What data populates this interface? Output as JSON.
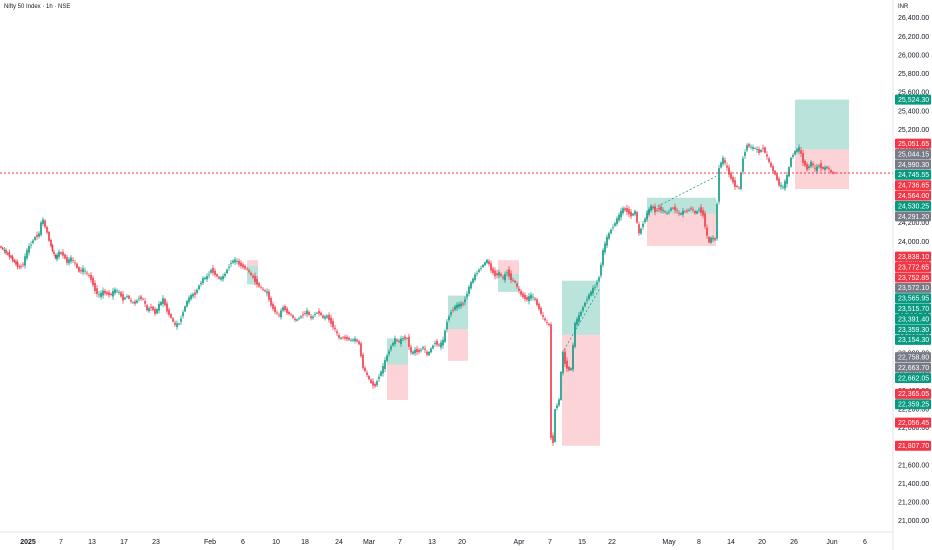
{
  "chart_data": {
    "type": "candlestick",
    "title": "Nifty 50 Index · 1h · NSE",
    "currency_label": "INR",
    "y_ticks": [
      21000,
      21200,
      21400,
      21600,
      21800,
      22000,
      22200,
      22400,
      22600,
      22800,
      23000,
      23200,
      23400,
      23600,
      23800,
      24000,
      24200,
      24400,
      24600,
      24800,
      25000,
      25200,
      25400,
      25600,
      25800,
      26000,
      26200,
      26400
    ],
    "y_tick_labels": [
      "21,000.00",
      "21,200.00",
      "21,400.00",
      "21,600.00",
      "21,800.00",
      "22,000.00",
      "22,200.00",
      "22,400.00",
      "22,600.00",
      "22,800.00",
      "23,000.00",
      "23,200.00",
      "23,400.00",
      "23,600.00",
      "23,800.00",
      "24,000.00",
      "24,200.00",
      "24,400.00",
      "24,600.00",
      "24,800.00",
      "25,000.00",
      "25,200.00",
      "25,400.00",
      "25,600.00",
      "25,800.00",
      "26,000.00",
      "26,200.00",
      "26,400.00"
    ],
    "ylim": [
      20900,
      26500
    ],
    "x_ticks": [
      {
        "label": "2025",
        "bold": true
      },
      {
        "label": "7"
      },
      {
        "label": "13"
      },
      {
        "label": "17"
      },
      {
        "label": "23"
      },
      {
        "label": "Feb"
      },
      {
        "label": "6"
      },
      {
        "label": "10"
      },
      {
        "label": "18"
      },
      {
        "label": "24"
      },
      {
        "label": "Mar"
      },
      {
        "label": "7"
      },
      {
        "label": "13"
      },
      {
        "label": "20"
      },
      {
        "label": "Apr"
      },
      {
        "label": "7"
      },
      {
        "label": "15"
      },
      {
        "label": "22"
      },
      {
        "label": "May"
      },
      {
        "label": "8"
      },
      {
        "label": "14"
      },
      {
        "label": "20"
      },
      {
        "label": "26"
      },
      {
        "label": "Jun"
      },
      {
        "label": "6"
      }
    ],
    "price_tags": [
      {
        "value": 25524.3,
        "label": "25,524.30",
        "color": "#089981"
      },
      {
        "value": 25051.65,
        "label": "25,051.65",
        "color": "#f23645"
      },
      {
        "value": 25044.15,
        "label": "25,044.15",
        "color": "#787b86"
      },
      {
        "value": 24990.3,
        "label": "24,990.30",
        "color": "#787b86"
      },
      {
        "value": 24745.55,
        "label": "24,745.55",
        "color": "#089981"
      },
      {
        "value": 24736.65,
        "label": "24,736.65",
        "color": "#f23645"
      },
      {
        "value": 24564.0,
        "label": "24,564.00",
        "color": "#f23645"
      },
      {
        "value": 24530.25,
        "label": "24,530.25",
        "color": "#089981"
      },
      {
        "value": 24291.2,
        "label": "24,291.20",
        "color": "#787b86"
      },
      {
        "value": 23838.1,
        "label": "23,838.10",
        "color": "#f23645"
      },
      {
        "value": 23772.65,
        "label": "23,772.65",
        "color": "#f23645"
      },
      {
        "value": 23752.85,
        "label": "23,752.85",
        "color": "#f23645"
      },
      {
        "value": 23572.1,
        "label": "23,572.10",
        "color": "#787b86"
      },
      {
        "value": 23565.95,
        "label": "23,565.95",
        "color": "#089981"
      },
      {
        "value": 23515.7,
        "label": "23,515.70",
        "color": "#089981"
      },
      {
        "value": 23391.4,
        "label": "23,391.40",
        "color": "#089981"
      },
      {
        "value": 23359.3,
        "label": "23,359.30",
        "color": "#089981"
      },
      {
        "value": 23154.3,
        "label": "23,154.30",
        "color": "#089981"
      },
      {
        "value": 22758.8,
        "label": "22,758.80",
        "color": "#787b86"
      },
      {
        "value": 22663.7,
        "label": "22,663.70",
        "color": "#787b86"
      },
      {
        "value": 22662.05,
        "label": "22,662.05",
        "color": "#089981"
      },
      {
        "value": 22365.05,
        "label": "22,365.05",
        "color": "#f23645"
      },
      {
        "value": 22359.25,
        "label": "22,359.25",
        "color": "#089981"
      },
      {
        "value": 22056.45,
        "label": "22,056.45",
        "color": "#f23645"
      },
      {
        "value": 21807.7,
        "label": "21,807.70",
        "color": "#f23645"
      }
    ],
    "current_price": 24736.65,
    "price_path": [
      [
        0,
        23950
      ],
      [
        5,
        23900
      ],
      [
        10,
        23850
      ],
      [
        15,
        23780
      ],
      [
        20,
        23720
      ],
      [
        24,
        23760
      ],
      [
        28,
        23900
      ],
      [
        32,
        23980
      ],
      [
        36,
        24050
      ],
      [
        40,
        24080
      ],
      [
        42,
        24200
      ],
      [
        44,
        24230
      ],
      [
        46,
        24150
      ],
      [
        48,
        24100
      ],
      [
        50,
        24010
      ],
      [
        53,
        23900
      ],
      [
        56,
        23820
      ],
      [
        60,
        23880
      ],
      [
        64,
        23860
      ],
      [
        68,
        23780
      ],
      [
        72,
        23820
      ],
      [
        76,
        23760
      ],
      [
        80,
        23680
      ],
      [
        84,
        23700
      ],
      [
        88,
        23650
      ],
      [
        92,
        23600
      ],
      [
        96,
        23480
      ],
      [
        100,
        23420
      ],
      [
        104,
        23460
      ],
      [
        108,
        23440
      ],
      [
        112,
        23430
      ],
      [
        116,
        23480
      ],
      [
        120,
        23450
      ],
      [
        124,
        23380
      ],
      [
        128,
        23420
      ],
      [
        132,
        23350
      ],
      [
        136,
        23340
      ],
      [
        140,
        23400
      ],
      [
        144,
        23380
      ],
      [
        148,
        23260
      ],
      [
        152,
        23300
      ],
      [
        156,
        23230
      ],
      [
        160,
        23320
      ],
      [
        164,
        23380
      ],
      [
        168,
        23260
      ],
      [
        172,
        23180
      ],
      [
        176,
        23100
      ],
      [
        180,
        23120
      ],
      [
        184,
        23250
      ],
      [
        188,
        23360
      ],
      [
        192,
        23420
      ],
      [
        196,
        23440
      ],
      [
        200,
        23530
      ],
      [
        204,
        23600
      ],
      [
        208,
        23620
      ],
      [
        212,
        23700
      ],
      [
        216,
        23650
      ],
      [
        220,
        23600
      ],
      [
        224,
        23620
      ],
      [
        228,
        23700
      ],
      [
        232,
        23780
      ],
      [
        236,
        23800
      ],
      [
        240,
        23760
      ],
      [
        244,
        23730
      ],
      [
        248,
        23700
      ],
      [
        252,
        23640
      ],
      [
        256,
        23580
      ],
      [
        260,
        23520
      ],
      [
        264,
        23480
      ],
      [
        268,
        23450
      ],
      [
        272,
        23320
      ],
      [
        276,
        23250
      ],
      [
        280,
        23200
      ],
      [
        284,
        23300
      ],
      [
        288,
        23240
      ],
      [
        292,
        23210
      ],
      [
        296,
        23150
      ],
      [
        300,
        23180
      ],
      [
        304,
        23220
      ],
      [
        308,
        23250
      ],
      [
        312,
        23170
      ],
      [
        316,
        23230
      ],
      [
        320,
        23240
      ],
      [
        324,
        23180
      ],
      [
        328,
        23200
      ],
      [
        332,
        23130
      ],
      [
        336,
        23050
      ],
      [
        340,
        22960
      ],
      [
        344,
        22970
      ],
      [
        348,
        22960
      ],
      [
        352,
        22940
      ],
      [
        356,
        22950
      ],
      [
        360,
        22900
      ],
      [
        364,
        22650
      ],
      [
        368,
        22560
      ],
      [
        372,
        22480
      ],
      [
        376,
        22450
      ],
      [
        380,
        22560
      ],
      [
        384,
        22650
      ],
      [
        388,
        22780
      ],
      [
        392,
        22880
      ],
      [
        396,
        22950
      ],
      [
        400,
        22920
      ],
      [
        404,
        22970
      ],
      [
        408,
        22960
      ],
      [
        412,
        22800
      ],
      [
        416,
        22830
      ],
      [
        420,
        22820
      ],
      [
        424,
        22870
      ],
      [
        428,
        22780
      ],
      [
        432,
        22850
      ],
      [
        436,
        22920
      ],
      [
        440,
        22880
      ],
      [
        444,
        22930
      ],
      [
        448,
        23150
      ],
      [
        452,
        23250
      ],
      [
        456,
        23300
      ],
      [
        460,
        23320
      ],
      [
        464,
        23330
      ],
      [
        468,
        23450
      ],
      [
        472,
        23560
      ],
      [
        476,
        23640
      ],
      [
        480,
        23700
      ],
      [
        484,
        23750
      ],
      [
        488,
        23800
      ],
      [
        492,
        23700
      ],
      [
        496,
        23640
      ],
      [
        500,
        23660
      ],
      [
        504,
        23600
      ],
      [
        508,
        23680
      ],
      [
        512,
        23600
      ],
      [
        516,
        23560
      ],
      [
        520,
        23460
      ],
      [
        524,
        23410
      ],
      [
        528,
        23380
      ],
      [
        532,
        23420
      ],
      [
        536,
        23370
      ],
      [
        540,
        23280
      ],
      [
        544,
        23180
      ],
      [
        548,
        23120
      ],
      [
        550,
        23100
      ],
      [
        552,
        21900
      ],
      [
        554,
        21850
      ],
      [
        556,
        22200
      ],
      [
        560,
        22300
      ],
      [
        562,
        22600
      ],
      [
        564,
        22800
      ],
      [
        566,
        22700
      ],
      [
        568,
        22650
      ],
      [
        570,
        22620
      ],
      [
        572,
        22640
      ],
      [
        576,
        23120
      ],
      [
        580,
        23200
      ],
      [
        584,
        23300
      ],
      [
        588,
        23390
      ],
      [
        592,
        23460
      ],
      [
        596,
        23520
      ],
      [
        600,
        23620
      ],
      [
        604,
        23900
      ],
      [
        608,
        24040
      ],
      [
        612,
        24130
      ],
      [
        616,
        24200
      ],
      [
        620,
        24280
      ],
      [
        624,
        24350
      ],
      [
        628,
        24330
      ],
      [
        632,
        24280
      ],
      [
        636,
        24320
      ],
      [
        640,
        24080
      ],
      [
        644,
        24200
      ],
      [
        648,
        24300
      ],
      [
        652,
        24380
      ],
      [
        656,
        24330
      ],
      [
        660,
        24360
      ],
      [
        664,
        24330
      ],
      [
        668,
        24300
      ],
      [
        672,
        24360
      ],
      [
        676,
        24350
      ],
      [
        680,
        24290
      ],
      [
        684,
        24320
      ],
      [
        688,
        24330
      ],
      [
        692,
        24360
      ],
      [
        696,
        24300
      ],
      [
        700,
        24350
      ],
      [
        704,
        24290
      ],
      [
        706,
        24170
      ],
      [
        708,
        24050
      ],
      [
        710,
        23990
      ],
      [
        712,
        24040
      ],
      [
        716,
        24020
      ],
      [
        720,
        24800
      ],
      [
        724,
        24890
      ],
      [
        728,
        24780
      ],
      [
        732,
        24680
      ],
      [
        736,
        24600
      ],
      [
        740,
        24570
      ],
      [
        744,
        24900
      ],
      [
        748,
        25040
      ],
      [
        752,
        25010
      ],
      [
        756,
        25000
      ],
      [
        760,
        24960
      ],
      [
        764,
        25010
      ],
      [
        768,
        24900
      ],
      [
        772,
        24800
      ],
      [
        776,
        24720
      ],
      [
        780,
        24610
      ],
      [
        784,
        24580
      ],
      [
        788,
        24700
      ],
      [
        792,
        24900
      ],
      [
        796,
        24970
      ],
      [
        800,
        25000
      ],
      [
        804,
        24860
      ],
      [
        808,
        24780
      ],
      [
        812,
        24850
      ],
      [
        816,
        24770
      ],
      [
        820,
        24820
      ],
      [
        824,
        24780
      ],
      [
        828,
        24800
      ],
      [
        832,
        24740
      ],
      [
        836,
        24737
      ]
    ],
    "shaded_boxes": [
      {
        "x0": 247,
        "x1": 258,
        "top": 23740,
        "bottom": 23540,
        "color": "green"
      },
      {
        "x0": 247,
        "x1": 258,
        "top": 23800,
        "bottom": 23740,
        "color": "red"
      },
      {
        "x0": 387,
        "x1": 408,
        "top": 22960,
        "bottom": 22680,
        "color": "green"
      },
      {
        "x0": 387,
        "x1": 408,
        "top": 22680,
        "bottom": 22300,
        "color": "red"
      },
      {
        "x0": 448,
        "x1": 468,
        "top": 23420,
        "bottom": 23060,
        "color": "green"
      },
      {
        "x0": 448,
        "x1": 468,
        "top": 23060,
        "bottom": 22720,
        "color": "red"
      },
      {
        "x0": 498,
        "x1": 519,
        "top": 23650,
        "bottom": 23460,
        "color": "green"
      },
      {
        "x0": 498,
        "x1": 519,
        "top": 23800,
        "bottom": 23650,
        "color": "red"
      },
      {
        "x0": 562,
        "x1": 600,
        "top": 23580,
        "bottom": 23000,
        "color": "green"
      },
      {
        "x0": 562,
        "x1": 600,
        "top": 23000,
        "bottom": 21807.7,
        "color": "red"
      },
      {
        "x0": 647,
        "x1": 716,
        "top": 24470,
        "bottom": 24300,
        "color": "green"
      },
      {
        "x0": 647,
        "x1": 716,
        "top": 24300,
        "bottom": 23952,
        "color": "red"
      },
      {
        "x0": 795,
        "x1": 849,
        "top": 25524.3,
        "bottom": 24990.3,
        "color": "green"
      },
      {
        "x0": 795,
        "x1": 849,
        "top": 24990.3,
        "bottom": 24564.0,
        "color": "red"
      }
    ]
  },
  "icons": {
    "bullet": "dot-separator"
  }
}
